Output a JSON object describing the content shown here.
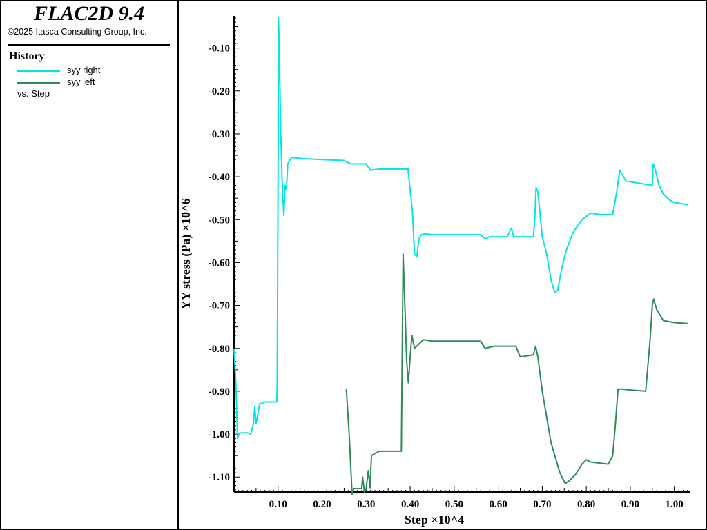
{
  "app": {
    "title": "FLAC2D 9.4",
    "copyright": "©2025 Itasca Consulting Group, Inc."
  },
  "legend": {
    "heading": "History",
    "items": [
      {
        "label": "syy right",
        "color": "#00e5e5"
      },
      {
        "label": "syy left",
        "color": "#2e8b57"
      }
    ],
    "vs_label": "vs. Step"
  },
  "chart_data": {
    "type": "line",
    "title": "",
    "xlabel": "Step ×10^4",
    "ylabel": "YY stress (Pa) ×10^6",
    "xlim": [
      0,
      1.035
    ],
    "ylim": [
      -1.135,
      -0.025
    ],
    "x_ticks": [
      "0.10",
      "0.20",
      "0.30",
      "0.40",
      "0.50",
      "0.60",
      "0.70",
      "0.80",
      "0.90",
      "1.00"
    ],
    "y_ticks": [
      "-0.10",
      "-0.20",
      "-0.30",
      "-0.40",
      "-0.50",
      "-0.60",
      "-0.70",
      "-0.80",
      "-0.90",
      "-1.00",
      "-1.10"
    ],
    "grid": false,
    "series": [
      {
        "name": "syy right",
        "color": "#00e5e5",
        "points": [
          [
            0.0,
            -0.8
          ],
          [
            0.004,
            -0.88
          ],
          [
            0.008,
            -1.01
          ],
          [
            0.012,
            -0.998
          ],
          [
            0.02,
            -0.997
          ],
          [
            0.03,
            -0.997
          ],
          [
            0.038,
            -1.0
          ],
          [
            0.044,
            -0.975
          ],
          [
            0.047,
            -0.935
          ],
          [
            0.05,
            -0.975
          ],
          [
            0.053,
            -0.96
          ],
          [
            0.058,
            -0.93
          ],
          [
            0.07,
            -0.925
          ],
          [
            0.09,
            -0.925
          ],
          [
            0.097,
            -0.925
          ],
          [
            0.098,
            -0.88
          ],
          [
            0.1,
            -0.38
          ],
          [
            0.101,
            -0.03
          ],
          [
            0.103,
            -0.12
          ],
          [
            0.106,
            -0.3
          ],
          [
            0.11,
            -0.43
          ],
          [
            0.113,
            -0.49
          ],
          [
            0.116,
            -0.42
          ],
          [
            0.119,
            -0.43
          ],
          [
            0.122,
            -0.37
          ],
          [
            0.13,
            -0.355
          ],
          [
            0.14,
            -0.356
          ],
          [
            0.16,
            -0.358
          ],
          [
            0.2,
            -0.36
          ],
          [
            0.25,
            -0.362
          ],
          [
            0.265,
            -0.37
          ],
          [
            0.3,
            -0.37
          ],
          [
            0.31,
            -0.385
          ],
          [
            0.33,
            -0.382
          ],
          [
            0.39,
            -0.382
          ],
          [
            0.395,
            -0.382
          ],
          [
            0.405,
            -0.48
          ],
          [
            0.41,
            -0.58
          ],
          [
            0.415,
            -0.587
          ],
          [
            0.42,
            -0.545
          ],
          [
            0.425,
            -0.535
          ],
          [
            0.435,
            -0.533
          ],
          [
            0.45,
            -0.535
          ],
          [
            0.5,
            -0.535
          ],
          [
            0.56,
            -0.535
          ],
          [
            0.57,
            -0.545
          ],
          [
            0.58,
            -0.54
          ],
          [
            0.62,
            -0.54
          ],
          [
            0.63,
            -0.52
          ],
          [
            0.635,
            -0.54
          ],
          [
            0.66,
            -0.54
          ],
          [
            0.68,
            -0.54
          ],
          [
            0.683,
            -0.5
          ],
          [
            0.686,
            -0.425
          ],
          [
            0.69,
            -0.435
          ],
          [
            0.7,
            -0.54
          ],
          [
            0.71,
            -0.58
          ],
          [
            0.72,
            -0.64
          ],
          [
            0.728,
            -0.67
          ],
          [
            0.735,
            -0.665
          ],
          [
            0.745,
            -0.61
          ],
          [
            0.755,
            -0.57
          ],
          [
            0.77,
            -0.53
          ],
          [
            0.79,
            -0.5
          ],
          [
            0.81,
            -0.485
          ],
          [
            0.83,
            -0.488
          ],
          [
            0.86,
            -0.488
          ],
          [
            0.87,
            -0.43
          ],
          [
            0.876,
            -0.385
          ],
          [
            0.882,
            -0.395
          ],
          [
            0.89,
            -0.41
          ],
          [
            0.95,
            -0.42
          ],
          [
            0.952,
            -0.37
          ],
          [
            0.956,
            -0.38
          ],
          [
            0.965,
            -0.42
          ],
          [
            0.975,
            -0.44
          ],
          [
            0.99,
            -0.455
          ],
          [
            1.0,
            -0.46
          ],
          [
            1.03,
            -0.465
          ]
        ]
      },
      {
        "name": "syy left",
        "color": "#2e8b57",
        "points": [
          [
            0.255,
            -0.895
          ],
          [
            0.262,
            -1.01
          ],
          [
            0.268,
            -1.14
          ],
          [
            0.272,
            -1.127
          ],
          [
            0.29,
            -1.127
          ],
          [
            0.292,
            -1.1
          ],
          [
            0.296,
            -1.135
          ],
          [
            0.3,
            -1.127
          ],
          [
            0.305,
            -1.085
          ],
          [
            0.309,
            -1.125
          ],
          [
            0.312,
            -1.05
          ],
          [
            0.32,
            -1.045
          ],
          [
            0.33,
            -1.04
          ],
          [
            0.38,
            -1.04
          ],
          [
            0.382,
            -0.8
          ],
          [
            0.384,
            -0.58
          ],
          [
            0.388,
            -0.7
          ],
          [
            0.392,
            -0.83
          ],
          [
            0.396,
            -0.88
          ],
          [
            0.4,
            -0.82
          ],
          [
            0.404,
            -0.77
          ],
          [
            0.41,
            -0.8
          ],
          [
            0.42,
            -0.79
          ],
          [
            0.43,
            -0.78
          ],
          [
            0.45,
            -0.783
          ],
          [
            0.5,
            -0.783
          ],
          [
            0.56,
            -0.783
          ],
          [
            0.57,
            -0.8
          ],
          [
            0.59,
            -0.795
          ],
          [
            0.64,
            -0.795
          ],
          [
            0.65,
            -0.82
          ],
          [
            0.68,
            -0.815
          ],
          [
            0.685,
            -0.795
          ],
          [
            0.69,
            -0.82
          ],
          [
            0.7,
            -0.9
          ],
          [
            0.72,
            -1.02
          ],
          [
            0.74,
            -1.09
          ],
          [
            0.752,
            -1.115
          ],
          [
            0.76,
            -1.11
          ],
          [
            0.775,
            -1.095
          ],
          [
            0.79,
            -1.07
          ],
          [
            0.8,
            -1.06
          ],
          [
            0.81,
            -1.065
          ],
          [
            0.85,
            -1.07
          ],
          [
            0.86,
            -1.05
          ],
          [
            0.866,
            -0.98
          ],
          [
            0.872,
            -0.895
          ],
          [
            0.88,
            -0.895
          ],
          [
            0.9,
            -0.897
          ],
          [
            0.935,
            -0.9
          ],
          [
            0.945,
            -0.78
          ],
          [
            0.95,
            -0.7
          ],
          [
            0.953,
            -0.685
          ],
          [
            0.96,
            -0.71
          ],
          [
            0.975,
            -0.735
          ],
          [
            1.0,
            -0.74
          ],
          [
            1.03,
            -0.742
          ]
        ]
      }
    ]
  }
}
